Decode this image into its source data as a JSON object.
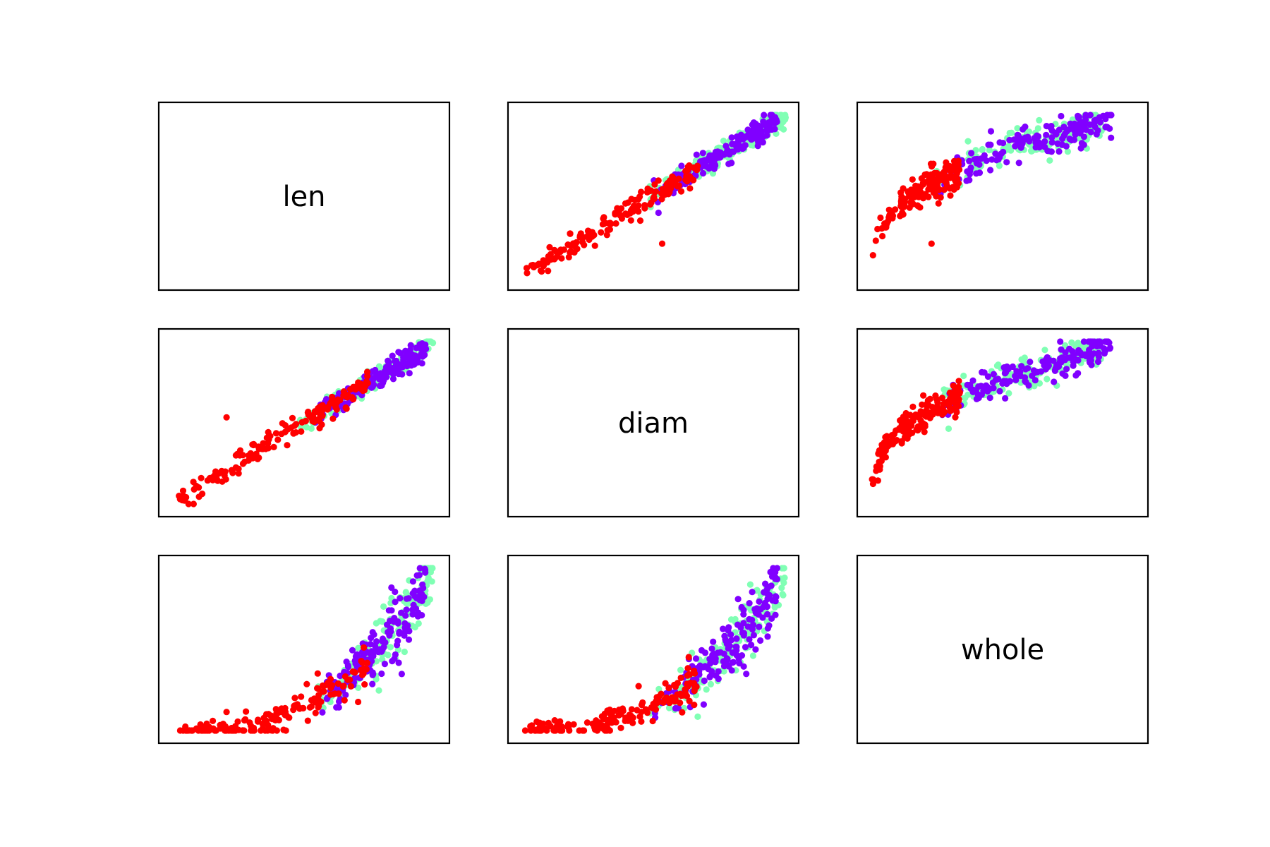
{
  "chart_data": {
    "type": "scatter",
    "layout": "scatter-matrix",
    "variables": [
      "len",
      "diam",
      "whole"
    ],
    "colors": {
      "red": "#ff0000",
      "purple": "#8000ff",
      "green": "#80ffb4"
    },
    "axes_ticks": "none",
    "panels": [
      {
        "row": "len",
        "col": "len",
        "kind": "label",
        "text": "len"
      },
      {
        "row": "len",
        "col": "diam",
        "kind": "scatter",
        "x": "diam",
        "y": "len",
        "x_range": [
          0.05,
          0.65
        ],
        "y_range": [
          0.05,
          0.82
        ],
        "shape": "linear",
        "points_per_group": 160,
        "groups": [
          {
            "color": "red",
            "x_range": [
              0.06,
              0.45
            ]
          },
          {
            "color": "purple",
            "x_range": [
              0.3,
              0.63
            ]
          },
          {
            "color": "green",
            "x_range": [
              0.28,
              0.65
            ]
          }
        ],
        "outliers": [
          {
            "color": "red",
            "x": 0.37,
            "y": 0.21
          }
        ]
      },
      {
        "row": "len",
        "col": "whole",
        "kind": "scatter",
        "x": "whole",
        "y": "len",
        "x_range": [
          0.0,
          2.8
        ],
        "y_range": [
          0.05,
          0.82
        ],
        "shape": "sqrt",
        "points_per_group": 160,
        "groups": [
          {
            "color": "red",
            "x_range": [
              0.02,
              0.95
            ]
          },
          {
            "color": "purple",
            "x_range": [
              0.4,
              2.55
            ]
          },
          {
            "color": "green",
            "x_range": [
              0.35,
              2.45
            ]
          }
        ],
        "outliers": [
          {
            "color": "red",
            "x": 0.65,
            "y": 0.21
          }
        ]
      },
      {
        "row": "diam",
        "col": "len",
        "kind": "scatter",
        "x": "len",
        "y": "diam",
        "x_range": [
          0.05,
          0.82
        ],
        "y_range": [
          0.05,
          0.65
        ],
        "shape": "linear",
        "points_per_group": 160,
        "groups": [
          {
            "color": "red",
            "x_range": [
              0.07,
              0.62
            ]
          },
          {
            "color": "purple",
            "x_range": [
              0.38,
              0.79
            ]
          },
          {
            "color": "green",
            "x_range": [
              0.35,
              0.81
            ]
          }
        ],
        "outliers": [
          {
            "color": "red",
            "x": 0.21,
            "y": 0.37
          }
        ]
      },
      {
        "row": "diam",
        "col": "diam",
        "kind": "label",
        "text": "diam"
      },
      {
        "row": "diam",
        "col": "whole",
        "kind": "scatter",
        "x": "whole",
        "y": "diam",
        "x_range": [
          0.0,
          2.8
        ],
        "y_range": [
          0.05,
          0.65
        ],
        "shape": "sqrt",
        "points_per_group": 160,
        "groups": [
          {
            "color": "red",
            "x_range": [
              0.02,
              0.95
            ]
          },
          {
            "color": "purple",
            "x_range": [
              0.4,
              2.55
            ]
          },
          {
            "color": "green",
            "x_range": [
              0.35,
              2.45
            ]
          }
        ],
        "outliers": []
      },
      {
        "row": "whole",
        "col": "len",
        "kind": "scatter",
        "x": "len",
        "y": "whole",
        "x_range": [
          0.05,
          0.82
        ],
        "y_range": [
          0.0,
          2.8
        ],
        "shape": "exp",
        "points_per_group": 160,
        "groups": [
          {
            "color": "red",
            "x_range": [
              0.07,
              0.62
            ]
          },
          {
            "color": "purple",
            "x_range": [
              0.42,
              0.79
            ]
          },
          {
            "color": "green",
            "x_range": [
              0.4,
              0.81
            ]
          }
        ],
        "outliers": [
          {
            "color": "red",
            "x": 0.21,
            "y": 0.32
          }
        ]
      },
      {
        "row": "whole",
        "col": "diam",
        "kind": "scatter",
        "x": "diam",
        "y": "whole",
        "x_range": [
          0.05,
          0.65
        ],
        "y_range": [
          0.0,
          2.8
        ],
        "shape": "exp",
        "points_per_group": 160,
        "groups": [
          {
            "color": "red",
            "x_range": [
              0.06,
              0.45
            ]
          },
          {
            "color": "purple",
            "x_range": [
              0.3,
              0.63
            ]
          },
          {
            "color": "green",
            "x_range": [
              0.28,
              0.65
            ]
          }
        ],
        "outliers": []
      },
      {
        "row": "whole",
        "col": "whole",
        "kind": "label",
        "text": "whole"
      }
    ]
  }
}
